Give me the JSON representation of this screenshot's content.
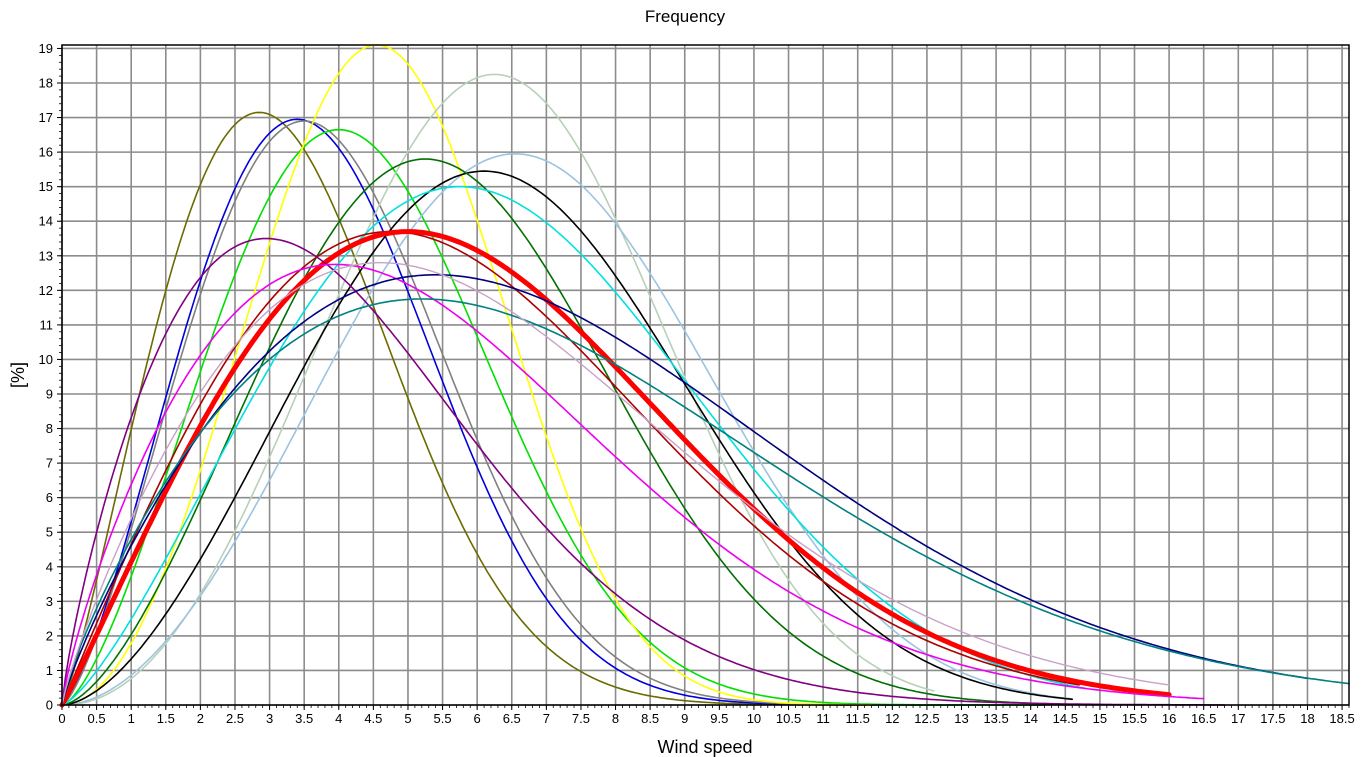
{
  "chart_data": {
    "type": "line",
    "title": "Frequency",
    "xlabel": "Wind speed",
    "ylabel": "[%]",
    "xlim": [
      0,
      18.6
    ],
    "ylim": [
      0,
      19.1
    ],
    "x_ticks": [
      0,
      0.5,
      1,
      1.5,
      2,
      2.5,
      3,
      3.5,
      4,
      4.5,
      5,
      5.5,
      6,
      6.5,
      7,
      7.5,
      8,
      8.5,
      9,
      9.5,
      10,
      10.5,
      11,
      11.5,
      12,
      12.5,
      13,
      13.5,
      14,
      14.5,
      15,
      15.5,
      16,
      16.5,
      17,
      17.5,
      18,
      18.5
    ],
    "y_ticks": [
      0,
      1,
      2,
      3,
      4,
      5,
      6,
      7,
      8,
      9,
      10,
      11,
      12,
      13,
      14,
      15,
      16,
      17,
      18,
      19
    ],
    "grid": true,
    "legend": "none",
    "series": [
      {
        "color": "#6b6b00",
        "k": 2.2,
        "peak_x": 2.85,
        "peak_y": 17.15,
        "x_end": 14.2,
        "width": 1.6
      },
      {
        "color": "#0000dd",
        "k": 2.4,
        "peak_x": 3.4,
        "peak_y": 16.95,
        "x_end": 14.2,
        "width": 1.6
      },
      {
        "color": "#808080",
        "k": 2.4,
        "peak_x": 3.5,
        "peak_y": 16.9,
        "x_end": 14.2,
        "width": 1.6
      },
      {
        "color": "#00e000",
        "k": 2.5,
        "peak_x": 4.0,
        "peak_y": 16.65,
        "x_end": 14.2,
        "width": 1.6
      },
      {
        "color": "#ffff00",
        "k": 3.0,
        "peak_x": 4.55,
        "peak_y": 19.1,
        "x_end": 11.7,
        "width": 1.6
      },
      {
        "color": "#b8d0b8",
        "k": 3.1,
        "peak_x": 6.25,
        "peak_y": 18.25,
        "x_end": 12.6,
        "width": 1.6
      },
      {
        "color": "#9cc3e0",
        "k": 2.9,
        "peak_x": 6.55,
        "peak_y": 15.95,
        "x_end": 14.6,
        "width": 1.6
      },
      {
        "color": "#000000",
        "k": 2.7,
        "peak_x": 6.1,
        "peak_y": 15.45,
        "x_end": 14.6,
        "width": 1.6
      },
      {
        "color": "#007000",
        "k": 2.6,
        "peak_x": 5.25,
        "peak_y": 15.8,
        "x_end": 14.3,
        "width": 1.6
      },
      {
        "color": "#00e0e0",
        "k": 2.35,
        "peak_x": 5.75,
        "peak_y": 15.0,
        "x_end": 14.8,
        "width": 1.6
      },
      {
        "color": "#aa0000",
        "k": 2.0,
        "peak_x": 4.75,
        "peak_y": 13.7,
        "x_end": 14.7,
        "width": 1.6
      },
      {
        "color": "#ff0000",
        "k": 2.05,
        "peak_x": 5.0,
        "peak_y": 13.7,
        "x_end": 16.0,
        "width": 5.0
      },
      {
        "color": "#800080",
        "k": 1.8,
        "peak_x": 2.95,
        "peak_y": 13.5,
        "x_end": 16.8,
        "width": 1.6
      },
      {
        "color": "#ee00ee",
        "k": 1.8,
        "peak_x": 3.95,
        "peak_y": 12.75,
        "x_end": 16.5,
        "width": 1.6
      },
      {
        "color": "#000080",
        "k": 1.85,
        "peak_x": 5.4,
        "peak_y": 12.45,
        "x_end": 18.0,
        "width": 1.6
      },
      {
        "color": "#008080",
        "k": 1.8,
        "peak_x": 5.2,
        "peak_y": 11.75,
        "x_end": 18.6,
        "width": 1.6
      },
      {
        "color": "#c8a2c8",
        "k": 1.85,
        "peak_x": 4.6,
        "peak_y": 12.8,
        "x_end": 16.0,
        "width": 1.4
      }
    ]
  }
}
